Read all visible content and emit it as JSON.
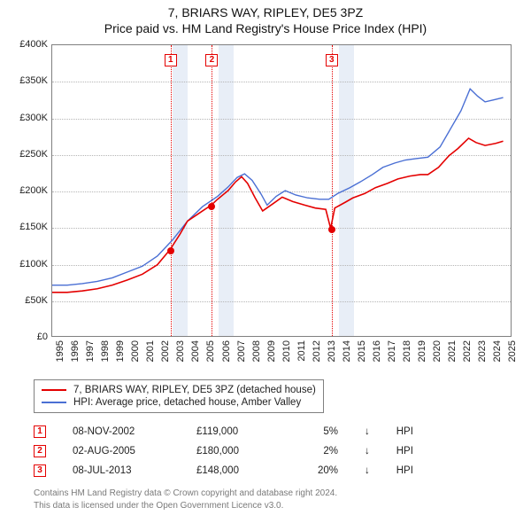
{
  "title": {
    "line1": "7, BRIARS WAY, RIPLEY, DE5 3PZ",
    "line2": "Price paid vs. HM Land Registry's House Price Index (HPI)"
  },
  "chart": {
    "type": "line",
    "background_color": "#ffffff",
    "grid_color": "#b5b5b5",
    "border_color": "#808080",
    "shade_color": "#e8eef7",
    "vline_color": "#e40000",
    "x": {
      "min": 1995,
      "max": 2025.5,
      "ticks": [
        1995,
        1996,
        1997,
        1998,
        1999,
        2000,
        2001,
        2002,
        2003,
        2004,
        2005,
        2006,
        2007,
        2008,
        2009,
        2010,
        2011,
        2012,
        2013,
        2014,
        2015,
        2016,
        2017,
        2018,
        2019,
        2020,
        2021,
        2022,
        2023,
        2024,
        2025
      ],
      "label_fontsize": 11
    },
    "y": {
      "min": 0,
      "max": 400000,
      "ticks": [
        0,
        50000,
        100000,
        150000,
        200000,
        250000,
        300000,
        350000,
        400000
      ],
      "prefix": "£",
      "suffix": "K",
      "divisor": 1000,
      "label_fontsize": 11
    },
    "shaded_years": [
      2003,
      2006,
      2014
    ],
    "sale_markers": [
      {
        "n": "1",
        "year": 2002.85,
        "price": 119000
      },
      {
        "n": "2",
        "year": 2005.58,
        "price": 180000
      },
      {
        "n": "3",
        "year": 2013.52,
        "price": 148000
      }
    ],
    "series": {
      "price_paid": {
        "label": "7, BRIARS WAY, RIPLEY, DE5 3PZ (detached house)",
        "color": "#e40000",
        "line_width": 1.6,
        "points": [
          [
            1995,
            60000
          ],
          [
            1996,
            60000
          ],
          [
            1997,
            62000
          ],
          [
            1998,
            65000
          ],
          [
            1999,
            70000
          ],
          [
            2000,
            77000
          ],
          [
            2001,
            85000
          ],
          [
            2002,
            98000
          ],
          [
            2002.85,
            119000
          ],
          [
            2003.5,
            140000
          ],
          [
            2004,
            158000
          ],
          [
            2005,
            172000
          ],
          [
            2005.58,
            180000
          ],
          [
            2006,
            188000
          ],
          [
            2006.7,
            200000
          ],
          [
            2007.2,
            212000
          ],
          [
            2007.6,
            219000
          ],
          [
            2008,
            210000
          ],
          [
            2008.5,
            190000
          ],
          [
            2009,
            172000
          ],
          [
            2009.7,
            182000
          ],
          [
            2010.3,
            191000
          ],
          [
            2011,
            185000
          ],
          [
            2011.8,
            180000
          ],
          [
            2012.5,
            176000
          ],
          [
            2013.2,
            174000
          ],
          [
            2013.52,
            148000
          ],
          [
            2013.8,
            176000
          ],
          [
            2014.5,
            184000
          ],
          [
            2015,
            190000
          ],
          [
            2015.8,
            196000
          ],
          [
            2016.5,
            204000
          ],
          [
            2017.3,
            210000
          ],
          [
            2018,
            216000
          ],
          [
            2018.8,
            220000
          ],
          [
            2019.5,
            222000
          ],
          [
            2020,
            222000
          ],
          [
            2020.7,
            232000
          ],
          [
            2021.4,
            248000
          ],
          [
            2022,
            258000
          ],
          [
            2022.7,
            272000
          ],
          [
            2023.2,
            266000
          ],
          [
            2023.8,
            262000
          ],
          [
            2024.5,
            265000
          ],
          [
            2025,
            268000
          ]
        ]
      },
      "hpi": {
        "label": "HPI: Average price, detached house, Amber Valley",
        "color": "#4a6fd4",
        "line_width": 1.4,
        "points": [
          [
            1995,
            70000
          ],
          [
            1996,
            70000
          ],
          [
            1997,
            72000
          ],
          [
            1998,
            75000
          ],
          [
            1999,
            80000
          ],
          [
            2000,
            88000
          ],
          [
            2001,
            96000
          ],
          [
            2002,
            110000
          ],
          [
            2003,
            132000
          ],
          [
            2004,
            158000
          ],
          [
            2005,
            178000
          ],
          [
            2006,
            192000
          ],
          [
            2006.7,
            205000
          ],
          [
            2007.3,
            218000
          ],
          [
            2007.8,
            223000
          ],
          [
            2008.3,
            214000
          ],
          [
            2008.9,
            195000
          ],
          [
            2009.3,
            180000
          ],
          [
            2009.9,
            192000
          ],
          [
            2010.5,
            200000
          ],
          [
            2011.2,
            194000
          ],
          [
            2012,
            190000
          ],
          [
            2012.8,
            188000
          ],
          [
            2013.4,
            188000
          ],
          [
            2014,
            196000
          ],
          [
            2014.8,
            204000
          ],
          [
            2015.5,
            212000
          ],
          [
            2016.3,
            222000
          ],
          [
            2017,
            232000
          ],
          [
            2017.8,
            238000
          ],
          [
            2018.5,
            242000
          ],
          [
            2019.2,
            244000
          ],
          [
            2020,
            246000
          ],
          [
            2020.8,
            260000
          ],
          [
            2021.5,
            285000
          ],
          [
            2022.2,
            310000
          ],
          [
            2022.8,
            340000
          ],
          [
            2023.3,
            330000
          ],
          [
            2023.8,
            322000
          ],
          [
            2024.4,
            325000
          ],
          [
            2025,
            328000
          ]
        ]
      }
    }
  },
  "legend": {
    "border_color": "#808080"
  },
  "sales": [
    {
      "n": "1",
      "date": "08-NOV-2002",
      "price": "£119,000",
      "diff": "5%",
      "arrow": "↓",
      "ref": "HPI"
    },
    {
      "n": "2",
      "date": "02-AUG-2005",
      "price": "£180,000",
      "diff": "2%",
      "arrow": "↓",
      "ref": "HPI"
    },
    {
      "n": "3",
      "date": "08-JUL-2013",
      "price": "£148,000",
      "diff": "20%",
      "arrow": "↓",
      "ref": "HPI"
    }
  ],
  "footnote": {
    "line1": "Contains HM Land Registry data © Crown copyright and database right 2024.",
    "line2": "This data is licensed under the Open Government Licence v3.0."
  },
  "colors": {
    "marker_border": "#e40000",
    "footnote_text": "#7a7a7a"
  }
}
